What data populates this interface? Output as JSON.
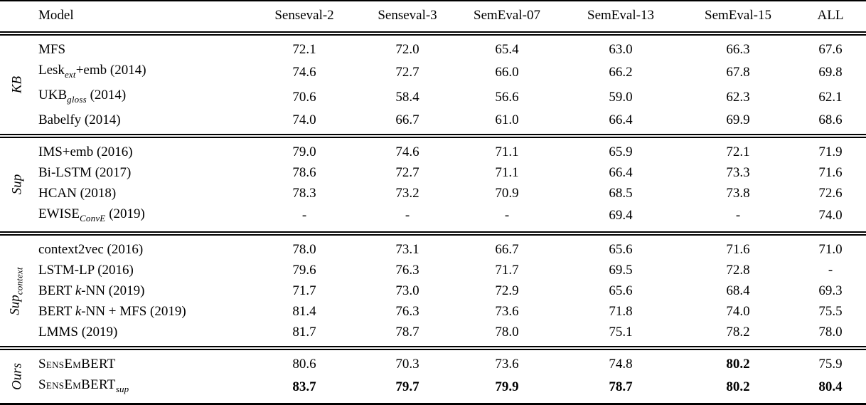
{
  "table": {
    "columns": [
      "Model",
      "Senseval-2",
      "Senseval-3",
      "SemEval-07",
      "SemEval-13",
      "SemEval-15",
      "ALL"
    ],
    "missing_value_symbol": "-",
    "sections": [
      {
        "id": "kb",
        "group": [
          {
            "t": "KB"
          }
        ],
        "rows": [
          {
            "name": [
              {
                "t": "MFS"
              }
            ],
            "values": [
              "72.1",
              "72.0",
              "65.4",
              "63.0",
              "66.3",
              "67.6"
            ],
            "bold": [
              false,
              false,
              false,
              false,
              false,
              false
            ]
          },
          {
            "name": [
              {
                "t": "Lesk"
              },
              {
                "t": "ext",
                "s": "sub"
              },
              {
                "t": "+emb (2014)"
              }
            ],
            "values": [
              "74.6",
              "72.7",
              "66.0",
              "66.2",
              "67.8",
              "69.8"
            ],
            "bold": [
              false,
              false,
              false,
              false,
              false,
              false
            ]
          },
          {
            "name": [
              {
                "t": "UKB"
              },
              {
                "t": "gloss",
                "s": "sub"
              },
              {
                "t": " (2014)"
              }
            ],
            "values": [
              "70.6",
              "58.4",
              "56.6",
              "59.0",
              "62.3",
              "62.1"
            ],
            "bold": [
              false,
              false,
              false,
              false,
              false,
              false
            ]
          },
          {
            "name": [
              {
                "t": "Babelfy (2014)"
              }
            ],
            "values": [
              "74.0",
              "66.7",
              "61.0",
              "66.4",
              "69.9",
              "68.6"
            ],
            "bold": [
              false,
              false,
              false,
              false,
              false,
              false
            ]
          }
        ]
      },
      {
        "id": "sup",
        "group": [
          {
            "t": "Sup"
          }
        ],
        "rows": [
          {
            "name": [
              {
                "t": "IMS+emb (2016)"
              }
            ],
            "values": [
              "79.0",
              "74.6",
              "71.1",
              "65.9",
              "72.1",
              "71.9"
            ],
            "bold": [
              false,
              false,
              false,
              false,
              false,
              false
            ]
          },
          {
            "name": [
              {
                "t": "Bi-LSTM (2017)"
              }
            ],
            "values": [
              "78.6",
              "72.7",
              "71.1",
              "66.4",
              "73.3",
              "71.6"
            ],
            "bold": [
              false,
              false,
              false,
              false,
              false,
              false
            ]
          },
          {
            "name": [
              {
                "t": "HCAN (2018)"
              }
            ],
            "values": [
              "78.3",
              "73.2",
              "70.9",
              "68.5",
              "73.8",
              "72.6"
            ],
            "bold": [
              false,
              false,
              false,
              false,
              false,
              false
            ]
          },
          {
            "name": [
              {
                "t": "EWISE"
              },
              {
                "t": "ConvE",
                "s": "sub"
              },
              {
                "t": " (2019)"
              }
            ],
            "values": [
              "-",
              "-",
              "-",
              "69.4",
              "-",
              "74.0"
            ],
            "bold": [
              false,
              false,
              false,
              false,
              false,
              false
            ]
          }
        ]
      },
      {
        "id": "supcontext",
        "group": [
          {
            "t": "Sup"
          },
          {
            "t": "context",
            "s": "sub"
          }
        ],
        "rows": [
          {
            "name": [
              {
                "t": "context2vec (2016)"
              }
            ],
            "values": [
              "78.0",
              "73.1",
              "66.7",
              "65.6",
              "71.6",
              "71.0"
            ],
            "bold": [
              false,
              false,
              false,
              false,
              false,
              false
            ]
          },
          {
            "name": [
              {
                "t": "LSTM-LP (2016)"
              }
            ],
            "values": [
              "79.6",
              "76.3",
              "71.7",
              "69.5",
              "72.8",
              "-"
            ],
            "bold": [
              false,
              false,
              false,
              false,
              false,
              false
            ]
          },
          {
            "name": [
              {
                "t": "BERT "
              },
              {
                "t": "k",
                "s": "i"
              },
              {
                "t": "-NN (2019)"
              }
            ],
            "values": [
              "71.7",
              "73.0",
              "72.9",
              "65.6",
              "68.4",
              "69.3"
            ],
            "bold": [
              false,
              false,
              false,
              false,
              false,
              false
            ]
          },
          {
            "name": [
              {
                "t": "BERT "
              },
              {
                "t": "k",
                "s": "i"
              },
              {
                "t": "-NN + MFS (2019)"
              }
            ],
            "values": [
              "81.4",
              "76.3",
              "73.6",
              "71.8",
              "74.0",
              "75.5"
            ],
            "bold": [
              false,
              false,
              false,
              false,
              false,
              false
            ]
          },
          {
            "name": [
              {
                "t": "LMMS (2019)"
              }
            ],
            "values": [
              "81.7",
              "78.7",
              "78.0",
              "75.1",
              "78.2",
              "78.0"
            ],
            "bold": [
              false,
              false,
              false,
              false,
              false,
              false
            ]
          }
        ]
      },
      {
        "id": "ours",
        "group": [
          {
            "t": "Ours"
          }
        ],
        "rows": [
          {
            "name": [
              {
                "t": "SensEmBERT",
                "s": "sc"
              }
            ],
            "values": [
              "80.6",
              "70.3",
              "73.6",
              "74.8",
              "80.2",
              "75.9"
            ],
            "bold": [
              false,
              false,
              false,
              false,
              true,
              false
            ]
          },
          {
            "name": [
              {
                "t": "SensEmBERT",
                "s": "sc"
              },
              {
                "t": "sup",
                "s": "sub"
              }
            ],
            "values": [
              "83.7",
              "79.7",
              "79.9",
              "78.7",
              "80.2",
              "80.4"
            ],
            "bold": [
              true,
              true,
              true,
              true,
              true,
              true
            ]
          }
        ]
      }
    ]
  },
  "colors": {
    "text": "#000000",
    "background": "#ffffff",
    "rule": "#000000"
  }
}
